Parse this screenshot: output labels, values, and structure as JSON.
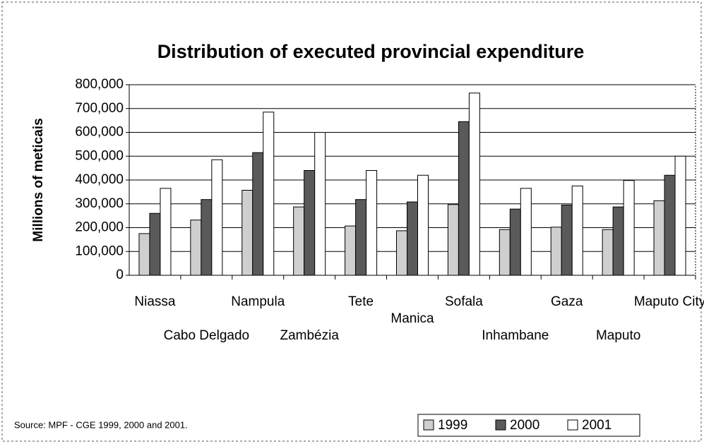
{
  "chart_data": {
    "type": "bar",
    "title": "Distribution of executed provincial expenditure",
    "y_label": "Millions of meticais",
    "source": "Source: MPF - CGE 1999, 2000 and 2001.",
    "categories": [
      "Niassa",
      "Cabo Delgado",
      "Nampula",
      "Zambézia",
      "Tete",
      "Manica",
      "Sofala",
      "Inhambane",
      "Gaza",
      "Maputo",
      "Maputo City"
    ],
    "series": [
      {
        "name": "1999",
        "color": "#cfcfcf",
        "values": [
          175000,
          232000,
          357000,
          287000,
          207000,
          187000,
          297000,
          192000,
          202000,
          192000,
          313000
        ]
      },
      {
        "name": "2000",
        "color": "#5a5a5a",
        "values": [
          260000,
          318000,
          515000,
          440000,
          318000,
          308000,
          645000,
          278000,
          295000,
          287000,
          420000
        ]
      },
      {
        "name": "2001",
        "color": "#ffffff",
        "values": [
          365000,
          485000,
          685000,
          600000,
          440000,
          420000,
          765000,
          365000,
          375000,
          398000,
          500000
        ]
      }
    ],
    "ylim": [
      0,
      800000
    ],
    "yticks": [
      0,
      {
        "value": 100000,
        "label": "100,000"
      },
      {
        "value": 200000,
        "label": "200,000"
      },
      {
        "value": 300000,
        "label": "300,000"
      },
      {
        "value": 400000,
        "label": "400,000"
      },
      {
        "value": 500000,
        "label": "500,000"
      },
      {
        "value": 600000,
        "label": "600,000"
      },
      {
        "value": 700000,
        "label": "700,000"
      },
      {
        "value": 800000,
        "label": "800,000"
      }
    ],
    "grid": true
  }
}
